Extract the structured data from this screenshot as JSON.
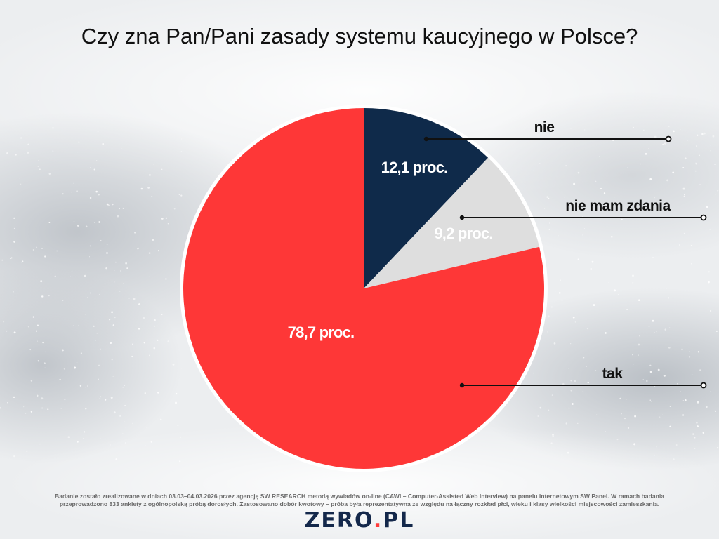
{
  "title": "Czy zna Pan/Pani zasady systemu kaucyjnego w Polsce?",
  "chart_data": {
    "type": "pie",
    "title": "Czy zna Pan/Pani zasady systemu kaucyjnego w Polsce?",
    "slices": [
      {
        "label": "nie",
        "value": 12.1,
        "value_label": "12,1 proc.",
        "color": "#0f2a4a",
        "text_color": "#ffffff"
      },
      {
        "label": "nie mam zdania",
        "value": 9.2,
        "value_label": "9,2 proc.",
        "color": "#dedede",
        "text_color": "#ffffff"
      },
      {
        "label": "tak",
        "value": 78.7,
        "value_label": "78,7 proc.",
        "color": "#fe3737",
        "text_color": "#ffffff"
      }
    ],
    "start_angle": "12 o'clock",
    "direction": "clockwise",
    "legend": "callouts-right"
  },
  "footnote": {
    "line1": "Badanie zostało zrealizowane w dniach 03.03–04.03.2026 przez agencję SW RESEARCH metodą wywiadów on-line (CAWI – Computer-Assisted Web Interview) na panelu internetowym SW Panel. W ramach badania",
    "line2": "przeprowadzono 833 ankiety z ogólnopolską próbą dorosłych. Zastosowano dobór kwotowy – próba była reprezentatywna ze względu na łączny rozkład płci, wieku i klasy wielkości miejscowości zamieszkania."
  },
  "logo": {
    "part1": "ZERO",
    "part2": ".",
    "part3": "PL"
  },
  "colors": {
    "accent_red": "#fe3737",
    "navy": "#0f2a4a",
    "grey": "#dedede",
    "line": "#111111"
  }
}
